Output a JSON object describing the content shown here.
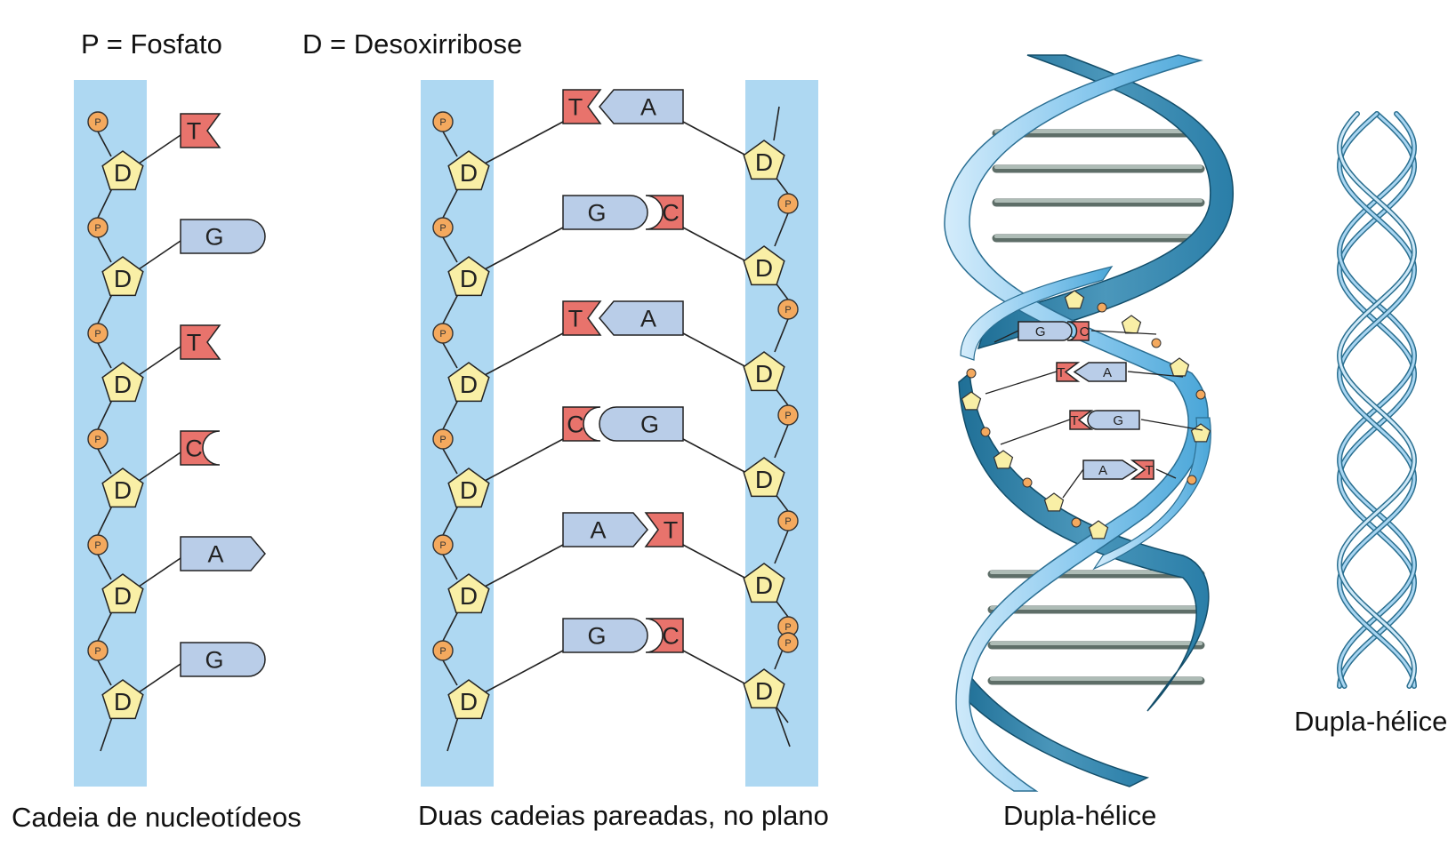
{
  "legend": {
    "phosphate": "P = Fosfato",
    "deoxyribose": "D = Desoxirribose"
  },
  "symbols": {
    "phosphate_letter": "P",
    "sugar_letter": "D"
  },
  "panels": {
    "single_chain": {
      "caption": "Cadeia de nucleotídeos",
      "bases": [
        "T",
        "G",
        "T",
        "C",
        "A",
        "G"
      ]
    },
    "paired_chains": {
      "caption": "Duas cadeias pareadas, no plano",
      "pairs": [
        {
          "left": "T",
          "right": "A"
        },
        {
          "left": "G",
          "right": "C"
        },
        {
          "left": "T",
          "right": "A"
        },
        {
          "left": "C",
          "right": "G"
        },
        {
          "left": "A",
          "right": "T"
        },
        {
          "left": "G",
          "right": "C"
        }
      ]
    },
    "double_helix": {
      "caption": "Dupla-hélice",
      "callouts": [
        {
          "left": "G",
          "right": "C"
        },
        {
          "left": "T",
          "right": "A"
        },
        {
          "left": "T",
          "right": "G"
        },
        {
          "left": "A",
          "right": "T"
        }
      ]
    },
    "double_helix_small": {
      "caption": "Dupla-hélice"
    }
  },
  "colors": {
    "backbone_band": "#aed8f2",
    "phosphate": "#f4a95e",
    "sugar": "#f9efa6",
    "purine_box": "#b9cde8",
    "pyrimidine_box": "#e8736c",
    "helix_light": "#9fcff0",
    "helix_dark": "#2a7fa8",
    "rung": "#8f9e98"
  }
}
